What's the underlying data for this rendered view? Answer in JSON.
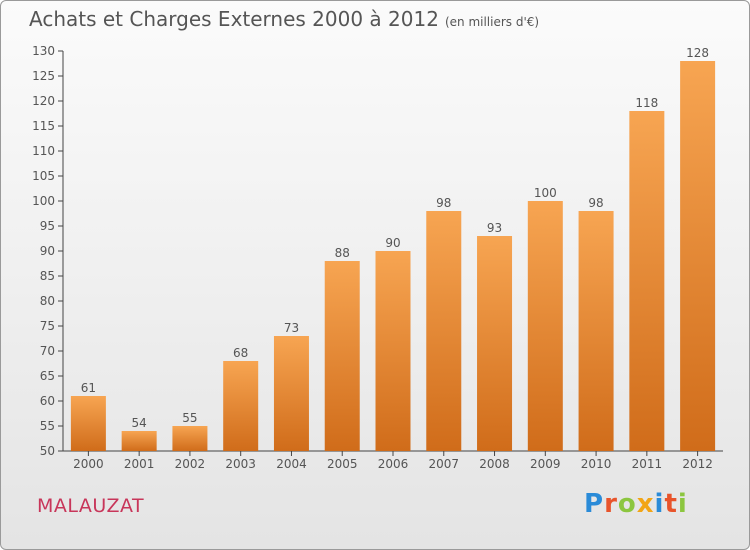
{
  "title": "Achats et Charges Externes 2000 à 2012",
  "subtitle": "(en milliers d'€)",
  "town": "MALAUZAT",
  "logo": {
    "letters": [
      "P",
      "r",
      "o",
      "x",
      "i",
      "t",
      "i"
    ],
    "colors": [
      "#2a8bd8",
      "#e8542b",
      "#8cc63f",
      "#f2a516",
      "#2a8bd8",
      "#e8542b",
      "#8cc63f"
    ]
  },
  "colors": {
    "bar_top": "#f7a552",
    "bar_bottom": "#d06c1a",
    "text": "#555555"
  },
  "chart_data": {
    "type": "bar",
    "title": "Achats et Charges Externes 2000 à 2012",
    "categories": [
      "2000",
      "2001",
      "2002",
      "2003",
      "2004",
      "2005",
      "2006",
      "2007",
      "2008",
      "2009",
      "2010",
      "2011",
      "2012"
    ],
    "values": [
      61,
      54,
      55,
      68,
      73,
      88,
      90,
      98,
      93,
      100,
      98,
      118,
      128
    ],
    "ylim": [
      50,
      130
    ],
    "yticks": [
      50,
      55,
      60,
      65,
      70,
      75,
      80,
      85,
      90,
      95,
      100,
      105,
      110,
      115,
      120,
      125,
      130
    ],
    "grid": false,
    "legend": "none"
  }
}
